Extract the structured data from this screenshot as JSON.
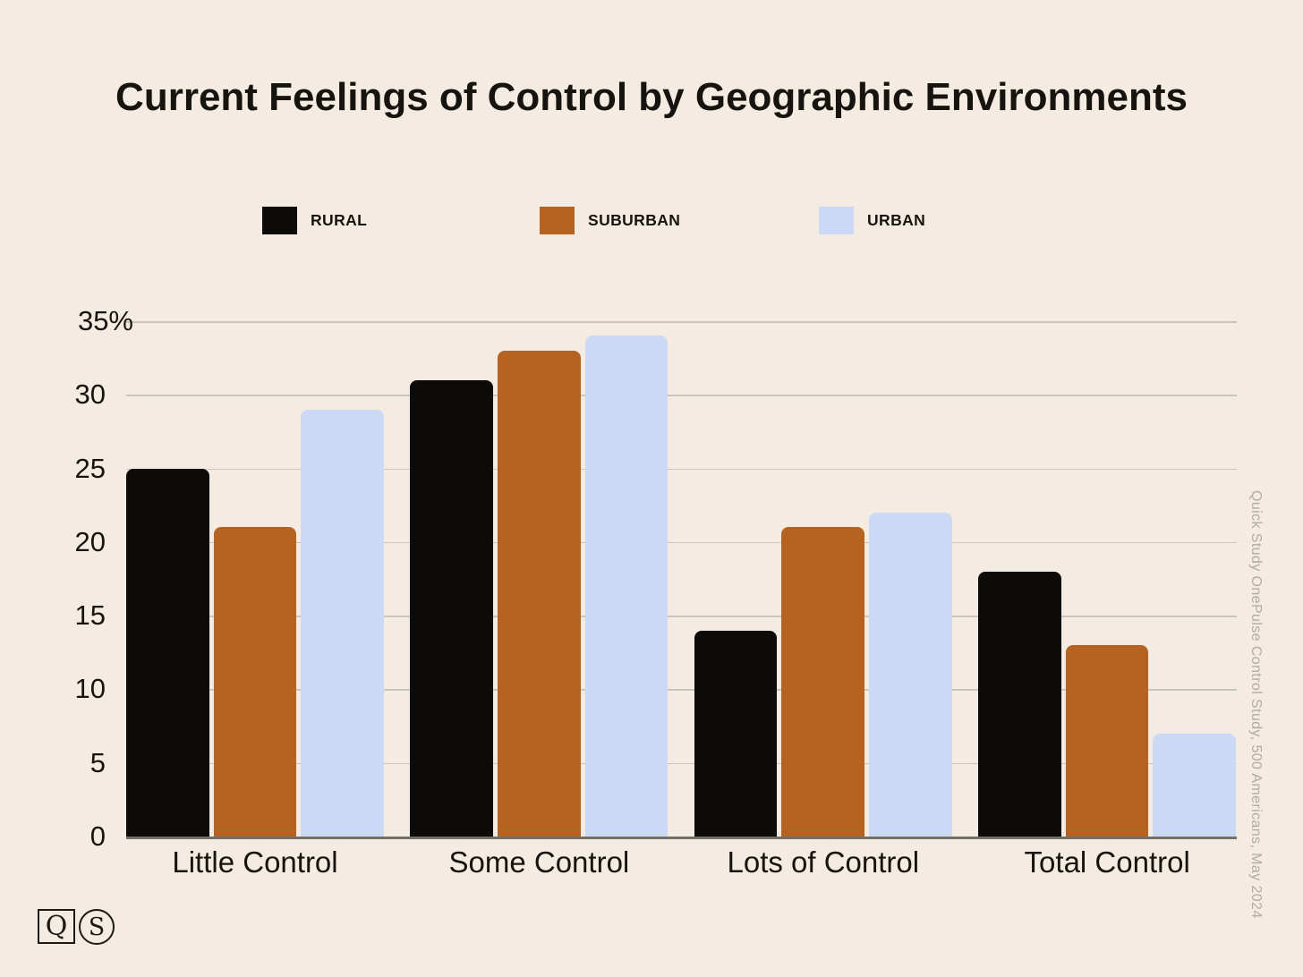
{
  "title": "Current Feelings of Control by Geographic Environments",
  "source_note": "Quick Study OnePulse Control Study, 500 Americans, May 2024",
  "logo": {
    "q": "Q",
    "s": "S"
  },
  "colors": {
    "background": "#f4ebe2",
    "rural": "#0d0b09",
    "suburban": "#b66220",
    "urban": "#ccd9f4",
    "gridline": "#cbc5bf",
    "axis_line": "#73706c",
    "text": "#17130f",
    "muted_text": "#b2aca6"
  },
  "chart_data": {
    "type": "bar",
    "title": "Current Feelings of Control by Geographic Environments",
    "categories": [
      "Little Control",
      "Some Control",
      "Lots of Control",
      "Total Control"
    ],
    "series": [
      {
        "name": "RURAL",
        "color": "#0d0b09",
        "values": [
          25,
          31,
          14,
          18
        ]
      },
      {
        "name": "SUBURBAN",
        "color": "#b66220",
        "values": [
          21,
          33,
          21,
          13
        ]
      },
      {
        "name": "URBAN",
        "color": "#ccd9f4",
        "values": [
          29,
          34,
          22,
          7
        ]
      }
    ],
    "xlabel": "",
    "ylabel": "",
    "ylim": [
      0,
      35
    ],
    "yticks": [
      0,
      5,
      10,
      15,
      20,
      25,
      30,
      35
    ],
    "ytick_labels": [
      "0",
      "5",
      "10",
      "15",
      "20",
      "25",
      "30",
      "35%"
    ],
    "grid": true,
    "legend_position": "top"
  }
}
